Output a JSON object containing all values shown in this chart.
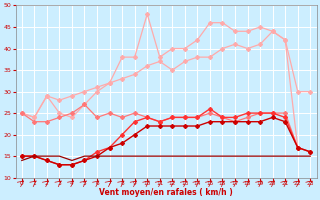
{
  "xlabel": "Vent moyen/en rafales ( km/h )",
  "background_color": "#cceeff",
  "grid_color": "#ffffff",
  "x_ticks": [
    0,
    1,
    2,
    3,
    4,
    5,
    6,
    7,
    8,
    9,
    10,
    11,
    12,
    13,
    14,
    15,
    16,
    17,
    18,
    19,
    20,
    21,
    22,
    23
  ],
  "ylim": [
    10,
    50
  ],
  "xlim": [
    -0.5,
    23.5
  ],
  "yticks": [
    10,
    15,
    20,
    25,
    30,
    35,
    40,
    45,
    50
  ],
  "lines": [
    {
      "color": "#ffaaaa",
      "lw": 0.9,
      "marker": "D",
      "ms": 2.0,
      "y": [
        25,
        24,
        29,
        28,
        29,
        30,
        31,
        32,
        33,
        34,
        36,
        37,
        35,
        37,
        38,
        38,
        40,
        41,
        40,
        41,
        44,
        42,
        30,
        30
      ]
    },
    {
      "color": "#ffaaaa",
      "lw": 0.9,
      "marker": "D",
      "ms": 2.0,
      "y": [
        25,
        24,
        29,
        25,
        24,
        27,
        30,
        32,
        38,
        38,
        48,
        38,
        40,
        40,
        42,
        46,
        46,
        44,
        44,
        45,
        44,
        42,
        17,
        null
      ]
    },
    {
      "color": "#ff7777",
      "lw": 0.9,
      "marker": "D",
      "ms": 2.0,
      "y": [
        25,
        23,
        23,
        24,
        25,
        27,
        24,
        25,
        24,
        25,
        24,
        23,
        24,
        24,
        24,
        25,
        24,
        23,
        24,
        25,
        25,
        25,
        17,
        null
      ]
    },
    {
      "color": "#ff3333",
      "lw": 1.0,
      "marker": "D",
      "ms": 2.0,
      "y": [
        15,
        15,
        14,
        13,
        13,
        14,
        16,
        17,
        20,
        23,
        24,
        23,
        24,
        24,
        24,
        26,
        24,
        24,
        25,
        25,
        25,
        24,
        17,
        16
      ]
    },
    {
      "color": "#cc0000",
      "lw": 1.0,
      "marker": "D",
      "ms": 2.0,
      "y": [
        15,
        15,
        14,
        13,
        13,
        14,
        15,
        17,
        18,
        20,
        22,
        22,
        22,
        22,
        22,
        23,
        23,
        23,
        23,
        23,
        24,
        23,
        17,
        16
      ]
    },
    {
      "color": "#990000",
      "lw": 0.9,
      "marker": null,
      "ms": 0,
      "y": [
        14,
        15,
        15,
        15,
        14,
        15,
        15,
        15,
        15,
        15,
        15,
        15,
        15,
        15,
        15,
        15,
        15,
        15,
        15,
        15,
        15,
        15,
        15,
        15
      ]
    }
  ]
}
